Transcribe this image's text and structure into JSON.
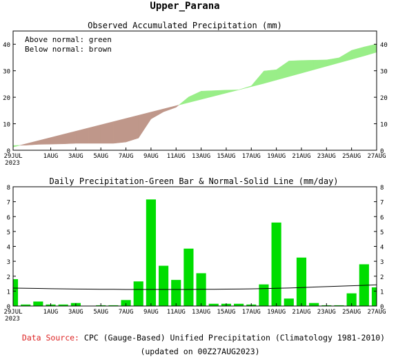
{
  "title": "Upper_Parana",
  "footer": {
    "source_label": "Data Source:",
    "source_text": "CPC (Gauge-Based) Unified Precipitation (Climatology 1981-2010)",
    "updated": "(updated on 00Z27AUG2023)"
  },
  "colors": {
    "above": "#99ee88",
    "below": "#bf978a",
    "bar": "#00dd00",
    "source_label": "#dd2222"
  },
  "chart_data": [
    {
      "type": "area",
      "title": "Observed Accumulated Precipitation (mm)",
      "legend": {
        "above": "Above normal: green",
        "below": "Below normal: brown",
        "placement": "top-left"
      },
      "x_labels": [
        "29JUL",
        "1AUG",
        "3AUG",
        "5AUG",
        "7AUG",
        "9AUG",
        "11AUG",
        "13AUG",
        "15AUG",
        "17AUG",
        "19AUG",
        "21AUG",
        "23AUG",
        "25AUG",
        "27AUG"
      ],
      "x_label_days": [
        0,
        3,
        5,
        7,
        9,
        11,
        13,
        15,
        17,
        19,
        21,
        23,
        25,
        27,
        29
      ],
      "year_label": "2023",
      "ylim": [
        0,
        45
      ],
      "yticks": [
        0,
        10,
        20,
        30,
        40
      ],
      "days": [
        0,
        1,
        2,
        3,
        4,
        5,
        6,
        7,
        8,
        9,
        10,
        11,
        12,
        13,
        14,
        15,
        16,
        17,
        18,
        19,
        20,
        21,
        22,
        23,
        24,
        25,
        26,
        27,
        28,
        29
      ],
      "observed": [
        1.8,
        1.9,
        2.2,
        2.3,
        2.4,
        2.6,
        2.6,
        2.6,
        2.6,
        3.1,
        4.6,
        11.8,
        14.5,
        16.2,
        20.1,
        22.3,
        22.5,
        22.7,
        22.8,
        24.3,
        29.9,
        30.4,
        33.7,
        33.9,
        34.0,
        34.1,
        34.9,
        37.7,
        39.0,
        40.1
      ],
      "normal": [
        1.2,
        2.4,
        3.6,
        4.8,
        6.0,
        7.2,
        8.4,
        9.6,
        10.8,
        12.0,
        13.2,
        14.4,
        15.6,
        16.8,
        18.0,
        19.2,
        20.4,
        21.6,
        22.8,
        24.0,
        25.2,
        26.5,
        27.8,
        29.1,
        30.4,
        31.7,
        33.0,
        34.3,
        35.6,
        37.0
      ]
    },
    {
      "type": "bar",
      "title": "Daily Precipitation-Green Bar & Normal-Solid Line (mm/day)",
      "x_labels": [
        "29JUL",
        "1AUG",
        "3AUG",
        "5AUG",
        "7AUG",
        "9AUG",
        "11AUG",
        "13AUG",
        "15AUG",
        "17AUG",
        "19AUG",
        "21AUG",
        "23AUG",
        "25AUG",
        "27AUG"
      ],
      "x_label_days": [
        0,
        3,
        5,
        7,
        9,
        11,
        13,
        15,
        17,
        19,
        21,
        23,
        25,
        27,
        29
      ],
      "year_label": "2023",
      "ylim": [
        0,
        8
      ],
      "yticks": [
        0,
        1,
        2,
        3,
        4,
        5,
        6,
        7,
        8
      ],
      "days": [
        0,
        1,
        2,
        3,
        4,
        5,
        6,
        7,
        8,
        9,
        10,
        11,
        12,
        13,
        14,
        15,
        16,
        17,
        18,
        19,
        20,
        21,
        22,
        23,
        24,
        25,
        26,
        27,
        28,
        29
      ],
      "values": [
        1.8,
        0.1,
        0.3,
        0.1,
        0.1,
        0.2,
        0.0,
        0.05,
        0.05,
        0.4,
        1.65,
        7.15,
        2.7,
        1.75,
        3.85,
        2.2,
        0.15,
        0.15,
        0.15,
        0.1,
        1.45,
        5.6,
        0.5,
        3.25,
        0.2,
        0.05,
        0.05,
        0.85,
        2.8,
        1.25
      ],
      "normal": [
        1.2,
        1.19,
        1.18,
        1.16,
        1.15,
        1.14,
        1.13,
        1.12,
        1.12,
        1.11,
        1.11,
        1.11,
        1.11,
        1.11,
        1.11,
        1.12,
        1.12,
        1.13,
        1.14,
        1.15,
        1.17,
        1.19,
        1.21,
        1.24,
        1.27,
        1.3,
        1.33,
        1.36,
        1.39,
        1.42
      ]
    }
  ]
}
